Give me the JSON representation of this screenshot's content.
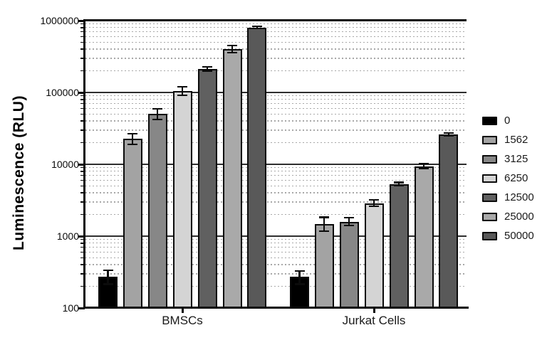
{
  "chart_data": {
    "type": "bar",
    "title": "",
    "ylabel": "Luminescence (RLU)",
    "xlabel": "",
    "yscale": "log",
    "ylim": [
      100,
      1000000
    ],
    "ytick_values": [
      1000000,
      100000,
      10000,
      1000,
      100
    ],
    "ytick_labels": [
      "1000000",
      "100000",
      "10000",
      "1000",
      "100"
    ],
    "minor_grid": "dotted lines at 2-9 log subdivisions of each decade",
    "major_grid": "solid lines at each decade",
    "categories": [
      "BMSCs",
      "Jurkat Cells"
    ],
    "legend_position": "right",
    "series": [
      {
        "name": "0",
        "color": "#000000",
        "values": [
          270,
          270
        ],
        "err_lo": [
          215,
          215
        ],
        "err_hi": [
          335,
          330
        ]
      },
      {
        "name": "1562",
        "color": "#a3a3a3",
        "values": [
          22500,
          1480
        ],
        "err_lo": [
          19000,
          1180
        ],
        "err_hi": [
          26500,
          1830
        ]
      },
      {
        "name": "3125",
        "color": "#878787",
        "values": [
          50000,
          1580
        ],
        "err_lo": [
          42000,
          1400
        ],
        "err_hi": [
          59000,
          1800
        ]
      },
      {
        "name": "6250",
        "color": "#d4d4d4",
        "values": [
          104000,
          2880
        ],
        "err_lo": [
          92000,
          2600
        ],
        "err_hi": [
          121000,
          3200
        ]
      },
      {
        "name": "12500",
        "color": "#606060",
        "values": [
          211000,
          5300
        ],
        "err_lo": [
          197000,
          5080
        ],
        "err_hi": [
          228000,
          5600
        ]
      },
      {
        "name": "25000",
        "color": "#a9a9a9",
        "values": [
          400000,
          9300
        ],
        "err_lo": [
          358000,
          8700
        ],
        "err_hi": [
          452000,
          10150
        ]
      },
      {
        "name": "50000",
        "color": "#595959",
        "values": [
          795000,
          26000
        ],
        "err_lo": [
          772000,
          25200
        ],
        "err_hi": [
          835000,
          27100
        ]
      }
    ]
  }
}
